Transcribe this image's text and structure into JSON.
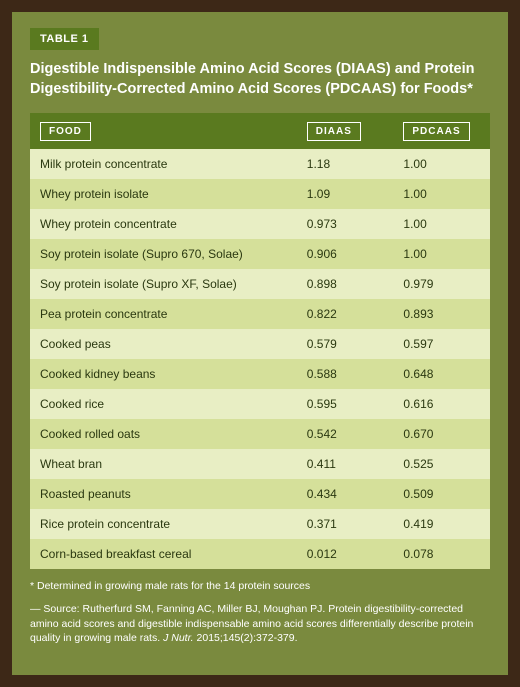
{
  "label": "TABLE 1",
  "title": "Digestible Indispensible Amino Acid Scores (DIAAS) and Protein Digestibility-Corrected Amino Acid Scores (PDCAAS) for Foods*",
  "columns": [
    "FOOD",
    "DIAAS",
    "PDCAAS"
  ],
  "rows": [
    {
      "food": "Milk protein concentrate",
      "diaas": "1.18",
      "pdcaas": "1.00"
    },
    {
      "food": "Whey protein isolate",
      "diaas": "1.09",
      "pdcaas": "1.00"
    },
    {
      "food": "Whey protein concentrate",
      "diaas": "0.973",
      "pdcaas": "1.00"
    },
    {
      "food": "Soy protein isolate (Supro 670, Solae)",
      "diaas": "0.906",
      "pdcaas": "1.00"
    },
    {
      "food": "Soy protein isolate (Supro XF, Solae)",
      "diaas": "0.898",
      "pdcaas": "0.979"
    },
    {
      "food": "Pea protein concentrate",
      "diaas": "0.822",
      "pdcaas": "0.893"
    },
    {
      "food": "Cooked peas",
      "diaas": "0.579",
      "pdcaas": "0.597"
    },
    {
      "food": "Cooked kidney beans",
      "diaas": "0.588",
      "pdcaas": "0.648"
    },
    {
      "food": "Cooked rice",
      "diaas": "0.595",
      "pdcaas": "0.616"
    },
    {
      "food": "Cooked rolled oats",
      "diaas": "0.542",
      "pdcaas": "0.670"
    },
    {
      "food": "Wheat bran",
      "diaas": "0.411",
      "pdcaas": "0.525"
    },
    {
      "food": "Roasted peanuts",
      "diaas": "0.434",
      "pdcaas": "0.509"
    },
    {
      "food": "Rice protein concentrate",
      "diaas": "0.371",
      "pdcaas": "0.419"
    },
    {
      "food": "Corn-based breakfast cereal",
      "diaas": "0.012",
      "pdcaas": "0.078"
    }
  ],
  "footnote": "* Determined in growing male rats for the 14 protein sources",
  "source_prefix": "— Source: Rutherfurd SM, Fanning AC, Miller BJ, Moughan PJ. Protein digestibility-corrected amino acid scores and digestible indispensable amino acid scores differentially describe protein quality in growing male rats. ",
  "source_journal": "J Nutr.",
  "source_suffix": " 2015;145(2):372-379.",
  "colors": {
    "outer_bg": "#3d2817",
    "panel_bg": "#7a8a3e",
    "header_bg": "#5a7a1f",
    "row_odd": "#e8eec4",
    "row_even": "#d5e09a",
    "text_light": "#ffffff",
    "text_dark": "#2a3810"
  }
}
